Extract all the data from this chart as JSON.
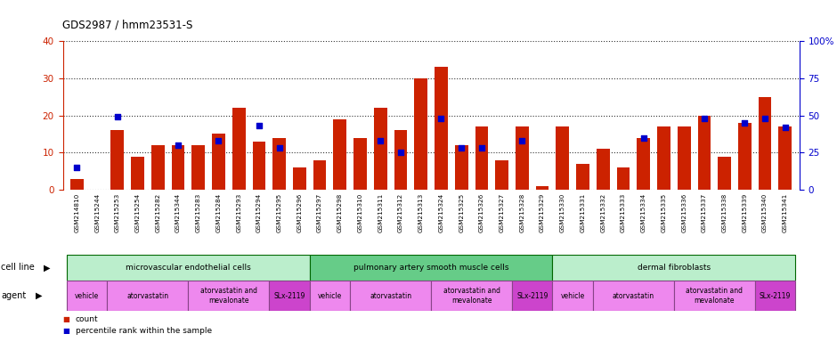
{
  "title": "GDS2987 / hmm23531-S",
  "samples": [
    "GSM214810",
    "GSM215244",
    "GSM215253",
    "GSM215254",
    "GSM215282",
    "GSM215344",
    "GSM215283",
    "GSM215284",
    "GSM215293",
    "GSM215294",
    "GSM215295",
    "GSM215296",
    "GSM215297",
    "GSM215298",
    "GSM215310",
    "GSM215311",
    "GSM215312",
    "GSM215313",
    "GSM215324",
    "GSM215325",
    "GSM215326",
    "GSM215327",
    "GSM215328",
    "GSM215329",
    "GSM215330",
    "GSM215331",
    "GSM215332",
    "GSM215333",
    "GSM215334",
    "GSM215335",
    "GSM215336",
    "GSM215337",
    "GSM215338",
    "GSM215339",
    "GSM215340",
    "GSM215341"
  ],
  "red_values": [
    3,
    0,
    16,
    9,
    12,
    12,
    12,
    15,
    22,
    13,
    14,
    6,
    8,
    19,
    14,
    22,
    16,
    30,
    33,
    12,
    17,
    8,
    17,
    1,
    17,
    7,
    11,
    6,
    14,
    17,
    17,
    20,
    9,
    18,
    25,
    17
  ],
  "blue_pct": [
    15,
    0,
    49,
    0,
    0,
    30,
    0,
    33,
    0,
    43,
    28,
    0,
    0,
    0,
    0,
    33,
    25,
    0,
    48,
    28,
    28,
    0,
    33,
    0,
    0,
    0,
    0,
    0,
    35,
    0,
    0,
    48,
    0,
    45,
    48,
    42
  ],
  "ylim_left": [
    0,
    40
  ],
  "ylim_right": [
    0,
    100
  ],
  "y_ticks_left": [
    0,
    10,
    20,
    30,
    40
  ],
  "y_ticks_right": [
    0,
    25,
    50,
    75,
    100
  ],
  "cell_line_groups": [
    {
      "label": "microvascular endothelial cells",
      "start": 0,
      "end": 12,
      "color": "#AAEEBB"
    },
    {
      "label": "pulmonary artery smooth muscle cells",
      "start": 12,
      "end": 24,
      "color": "#66DD88"
    },
    {
      "label": "dermal fibroblasts",
      "start": 24,
      "end": 36,
      "color": "#AAEEBB"
    }
  ],
  "agent_groups": [
    {
      "label": "vehicle",
      "start": 0,
      "end": 2,
      "color": "#EE88EE"
    },
    {
      "label": "atorvastatin",
      "start": 2,
      "end": 6,
      "color": "#EE88EE"
    },
    {
      "label": "atorvastatin and\nmevalonate",
      "start": 6,
      "end": 10,
      "color": "#EE88EE"
    },
    {
      "label": "SLx-2119",
      "start": 10,
      "end": 12,
      "color": "#CC44CC"
    },
    {
      "label": "vehicle",
      "start": 12,
      "end": 14,
      "color": "#EE88EE"
    },
    {
      "label": "atorvastatin",
      "start": 14,
      "end": 18,
      "color": "#EE88EE"
    },
    {
      "label": "atorvastatin and\nmevalonate",
      "start": 18,
      "end": 22,
      "color": "#EE88EE"
    },
    {
      "label": "SLx-2119",
      "start": 22,
      "end": 24,
      "color": "#CC44CC"
    },
    {
      "label": "vehicle",
      "start": 24,
      "end": 26,
      "color": "#EE88EE"
    },
    {
      "label": "atorvastatin",
      "start": 26,
      "end": 30,
      "color": "#EE88EE"
    },
    {
      "label": "atorvastatin and\nmevalonate",
      "start": 30,
      "end": 34,
      "color": "#EE88EE"
    },
    {
      "label": "SLx-2119",
      "start": 34,
      "end": 36,
      "color": "#CC44CC"
    }
  ],
  "bar_color": "#CC2200",
  "dot_color": "#0000CC",
  "bg_color": "#FFFFFF",
  "tick_bg_color": "#CCCCCC",
  "left_axis_color": "#CC2200",
  "right_axis_color": "#0000CC",
  "cell_line_border_color": "#006600",
  "agent_border_color": "#884488"
}
